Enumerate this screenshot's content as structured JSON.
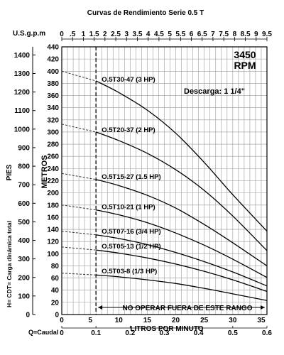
{
  "chart_data": {
    "type": "line",
    "title": "Curvas de Rendimiento Serie 0.5 T",
    "top_axis": {
      "label": "U.S.g.p.m",
      "ticks": [
        "0",
        ".5",
        "1",
        "1.5",
        "2",
        "2.5",
        "3",
        "3.5",
        "4",
        "4.5",
        "5",
        "5.5",
        "6",
        "6.5",
        "7",
        "7.5",
        "8",
        "8.5",
        "9",
        "9.5"
      ],
      "range": [
        0,
        9.5
      ]
    },
    "x_axis": {
      "label": "LITROS POR MINUTO",
      "range": [
        0,
        36
      ],
      "ticks": [
        "0",
        "5",
        "10",
        "15",
        "20",
        "25",
        "30",
        "35"
      ]
    },
    "bottom_axis": {
      "label": "Q=Caudal",
      "ticks": [
        "0",
        "0.1",
        "0.2",
        "0.3",
        "0.4",
        "0.5",
        "0.6"
      ]
    },
    "y_axis": {
      "label": "METROS",
      "range": [
        0,
        440
      ],
      "ticks": [
        "0",
        "20",
        "40",
        "60",
        "80",
        "100",
        "120",
        "140",
        "160",
        "180",
        "200",
        "220",
        "240",
        "260",
        "280",
        "300",
        "320",
        "340",
        "360",
        "380",
        "400",
        "420",
        "440"
      ]
    },
    "y2_axis": {
      "label": "PIES",
      "ticks": [
        "0",
        "100",
        "200",
        "300",
        "400",
        "500",
        "600",
        "700",
        "800",
        "900",
        "1000",
        "1100",
        "1200",
        "1300",
        "1400"
      ]
    },
    "y3_label": "H= CDT= Carga dinámica total",
    "rpm_label": "3450",
    "rpm_unit": "RPM",
    "discharge_label": "Descarga: 1 1/4\"",
    "limit_x": 6,
    "limit_label": "NO OPERAR FUERA DE ESTE RANGO",
    "series": [
      {
        "name": "O.5T30-47 (3 HP)",
        "x": [
          0,
          6,
          10,
          15,
          20,
          25,
          30,
          36
        ],
        "y": [
          400,
          384,
          365,
          336,
          298,
          250,
          197,
          137
        ]
      },
      {
        "name": "O.5T20-37 (2 HP)",
        "x": [
          0,
          6,
          10,
          15,
          20,
          25,
          30,
          36
        ],
        "y": [
          313,
          300,
          286,
          265,
          238,
          204,
          162,
          105
        ]
      },
      {
        "name": "O.5T15-27 (1.5 HP)",
        "x": [
          0,
          6,
          10,
          15,
          20,
          25,
          30,
          36
        ],
        "y": [
          232,
          222,
          212,
          196,
          175,
          148,
          118,
          80
        ]
      },
      {
        "name": "O.5T10-21 (1 HP)",
        "x": [
          0,
          6,
          10,
          15,
          20,
          25,
          30,
          36
        ],
        "y": [
          180,
          172,
          164,
          151,
          134,
          114,
          91,
          61
        ]
      },
      {
        "name": "O.5T07-16 (3/4 HP)",
        "x": [
          0,
          6,
          10,
          15,
          20,
          25,
          30,
          36
        ],
        "y": [
          137,
          131,
          125,
          115,
          102,
          87,
          70,
          47
        ]
      },
      {
        "name": "O.5T05-13 (1/2 HP)",
        "x": [
          0,
          6,
          10,
          15,
          20,
          25,
          30,
          36
        ],
        "y": [
          111,
          106,
          101,
          93,
          83,
          71,
          57,
          38
        ]
      },
      {
        "name": "O.5T03-8 (1/3 HP)",
        "x": [
          0,
          6,
          10,
          15,
          20,
          25,
          30,
          36
        ],
        "y": [
          68,
          65,
          62,
          57,
          51,
          43,
          34,
          23
        ]
      }
    ],
    "series_label_x": [
      7,
      7,
      7,
      7,
      7,
      7,
      7
    ],
    "grid": true
  }
}
